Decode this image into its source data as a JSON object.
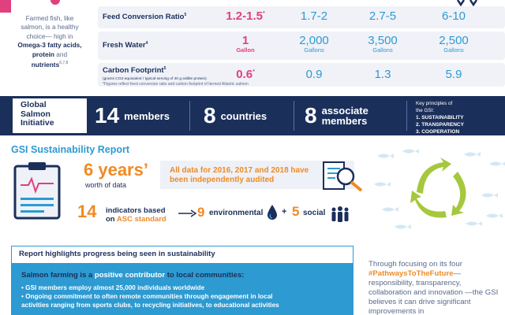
{
  "intro": {
    "pre": "Farmed fish, like salmon, is a healthy choice— high in ",
    "bold": "Omega-3 fatty acids, protein",
    "mid": " and ",
    "bold2": "nutrients",
    "refs": "6,7,8"
  },
  "comparison": {
    "rows": [
      {
        "label": "Feed Conversion Ratio",
        "ref": "5",
        "salmon": "1.2-1.5",
        "salmon_mark": "*",
        "chicken": "1.7-2",
        "pork": "2.7-5",
        "beef": "6-10",
        "unit": ""
      },
      {
        "label": "Fresh Water",
        "ref": "4",
        "salmon": "1",
        "salmon_unit": "Gallon",
        "chicken": "2,000",
        "pork": "3,500",
        "beef": "2,500",
        "unit": "Gallons"
      },
      {
        "label": "Carbon Footprint",
        "ref": "5",
        "sub": "(grams CO2-equivalent / typical serving of 40 g edible protein)",
        "salmon": "0.6",
        "salmon_mark": "*",
        "chicken": "0.9",
        "pork": "1.3",
        "beef": "5.9",
        "unit": ""
      }
    ],
    "footnote": "*Figures reflect feed conversion ratio and carbon footprint of farmed Atlantic salmon"
  },
  "gsi": {
    "title": "Global\nSalmon\nInitiative",
    "members_num": "14",
    "members_lbl": "members",
    "countries_num": "8",
    "countries_lbl": "countries",
    "assoc_num": "8",
    "assoc_lbl1": "associate",
    "assoc_lbl2": "members",
    "principles_head1": "Key principles of",
    "principles_head2": "the GSI:",
    "principles": [
      "1. SUSTAINABILITY",
      "2. TRANSPARENCY",
      "3. COOPERATION"
    ]
  },
  "report": {
    "title": "GSI Sustainability Report",
    "years_num": "6 years’",
    "years_lbl": "worth of data",
    "audit_text": "All data for 2016, 2017 and 2018 have been independently audited",
    "ind_num": "14",
    "ind_lbl1": "indicators based",
    "ind_lbl2_pre": "on ",
    "ind_lbl2_asc": "ASC standard",
    "env_num": "9",
    "env_lbl": "environmental",
    "plus": "+",
    "soc_num": "5",
    "soc_lbl": "social"
  },
  "highlights": {
    "head": "Report highlights progress being seen in sustainability",
    "lead_a": "Salmon farming is a ",
    "lead_b": "positive contributor",
    "lead_c": " to local communities:",
    "items": [
      "• GSI members employ almost 25,000 individuals worldwide",
      "• Ongoing commitment to often remote communities through engagement in local",
      "  activities ranging from sports clubs, to recycling initiatives, to educational activities"
    ]
  },
  "right_para": {
    "pre": "Through focusing on its four ",
    "hash": "#PathwaysToTheFuture",
    "post": "— responsibility, transparency, collaboration and innovation —the GSI believes it can drive significant improvements in"
  },
  "colors": {
    "navy": "#1b2f5b",
    "blue": "#2d9ad1",
    "pink": "#e0407d",
    "orange": "#f08a24",
    "green": "#a5c83c"
  }
}
